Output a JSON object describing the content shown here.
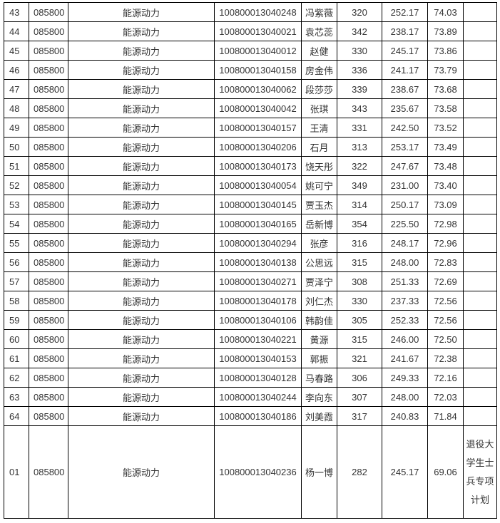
{
  "rows": [
    {
      "no": "43",
      "code": "085800",
      "major": "能源动力",
      "id": "100800013040248",
      "name": "冯紫薇",
      "s1": "320",
      "s2": "252.17",
      "s3": "74.03",
      "remark": ""
    },
    {
      "no": "44",
      "code": "085800",
      "major": "能源动力",
      "id": "100800013040021",
      "name": "袁芯蕊",
      "s1": "342",
      "s2": "238.17",
      "s3": "73.89",
      "remark": ""
    },
    {
      "no": "45",
      "code": "085800",
      "major": "能源动力",
      "id": "100800013040012",
      "name": "赵健",
      "s1": "330",
      "s2": "245.17",
      "s3": "73.86",
      "remark": ""
    },
    {
      "no": "46",
      "code": "085800",
      "major": "能源动力",
      "id": "100800013040158",
      "name": "房金伟",
      "s1": "336",
      "s2": "241.17",
      "s3": "73.79",
      "remark": ""
    },
    {
      "no": "47",
      "code": "085800",
      "major": "能源动力",
      "id": "100800013040062",
      "name": "段莎莎",
      "s1": "339",
      "s2": "238.67",
      "s3": "73.68",
      "remark": ""
    },
    {
      "no": "48",
      "code": "085800",
      "major": "能源动力",
      "id": "100800013040042",
      "name": "张琪",
      "s1": "343",
      "s2": "235.67",
      "s3": "73.58",
      "remark": ""
    },
    {
      "no": "49",
      "code": "085800",
      "major": "能源动力",
      "id": "100800013040157",
      "name": "王清",
      "s1": "331",
      "s2": "242.50",
      "s3": "73.52",
      "remark": ""
    },
    {
      "no": "50",
      "code": "085800",
      "major": "能源动力",
      "id": "100800013040206",
      "name": "石月",
      "s1": "313",
      "s2": "253.17",
      "s3": "73.49",
      "remark": ""
    },
    {
      "no": "51",
      "code": "085800",
      "major": "能源动力",
      "id": "100800013040173",
      "name": "饶天彤",
      "s1": "322",
      "s2": "247.67",
      "s3": "73.48",
      "remark": ""
    },
    {
      "no": "52",
      "code": "085800",
      "major": "能源动力",
      "id": "100800013040054",
      "name": "姚可宁",
      "s1": "349",
      "s2": "231.00",
      "s3": "73.40",
      "remark": ""
    },
    {
      "no": "53",
      "code": "085800",
      "major": "能源动力",
      "id": "100800013040145",
      "name": "贾玉杰",
      "s1": "314",
      "s2": "250.17",
      "s3": "73.09",
      "remark": ""
    },
    {
      "no": "54",
      "code": "085800",
      "major": "能源动力",
      "id": "100800013040165",
      "name": "岳新博",
      "s1": "354",
      "s2": "225.50",
      "s3": "72.98",
      "remark": ""
    },
    {
      "no": "55",
      "code": "085800",
      "major": "能源动力",
      "id": "100800013040294",
      "name": "张彦",
      "s1": "316",
      "s2": "248.17",
      "s3": "72.96",
      "remark": ""
    },
    {
      "no": "56",
      "code": "085800",
      "major": "能源动力",
      "id": "100800013040138",
      "name": "公思远",
      "s1": "315",
      "s2": "248.00",
      "s3": "72.83",
      "remark": ""
    },
    {
      "no": "57",
      "code": "085800",
      "major": "能源动力",
      "id": "100800013040271",
      "name": "贾泽宁",
      "s1": "308",
      "s2": "251.33",
      "s3": "72.69",
      "remark": ""
    },
    {
      "no": "58",
      "code": "085800",
      "major": "能源动力",
      "id": "100800013040178",
      "name": "刘仁杰",
      "s1": "330",
      "s2": "237.33",
      "s3": "72.56",
      "remark": ""
    },
    {
      "no": "59",
      "code": "085800",
      "major": "能源动力",
      "id": "100800013040106",
      "name": "韩韵佳",
      "s1": "305",
      "s2": "252.33",
      "s3": "72.56",
      "remark": ""
    },
    {
      "no": "60",
      "code": "085800",
      "major": "能源动力",
      "id": "100800013040221",
      "name": "黄源",
      "s1": "315",
      "s2": "246.00",
      "s3": "72.50",
      "remark": ""
    },
    {
      "no": "61",
      "code": "085800",
      "major": "能源动力",
      "id": "100800013040153",
      "name": "郭振",
      "s1": "321",
      "s2": "241.67",
      "s3": "72.38",
      "remark": ""
    },
    {
      "no": "62",
      "code": "085800",
      "major": "能源动力",
      "id": "100800013040128",
      "name": "马春路",
      "s1": "306",
      "s2": "249.33",
      "s3": "72.16",
      "remark": ""
    },
    {
      "no": "63",
      "code": "085800",
      "major": "能源动力",
      "id": "100800013040244",
      "name": "李向东",
      "s1": "307",
      "s2": "248.00",
      "s3": "72.03",
      "remark": ""
    },
    {
      "no": "64",
      "code": "085800",
      "major": "能源动力",
      "id": "100800013040186",
      "name": "刘美霞",
      "s1": "317",
      "s2": "240.83",
      "s3": "71.84",
      "remark": ""
    },
    {
      "no": "01",
      "code": "085800",
      "major": "能源动力",
      "id": "100800013040236",
      "name": "杨一博",
      "s1": "282",
      "s2": "245.17",
      "s3": "69.06",
      "remark": "退役大学生士兵专项计划"
    }
  ]
}
